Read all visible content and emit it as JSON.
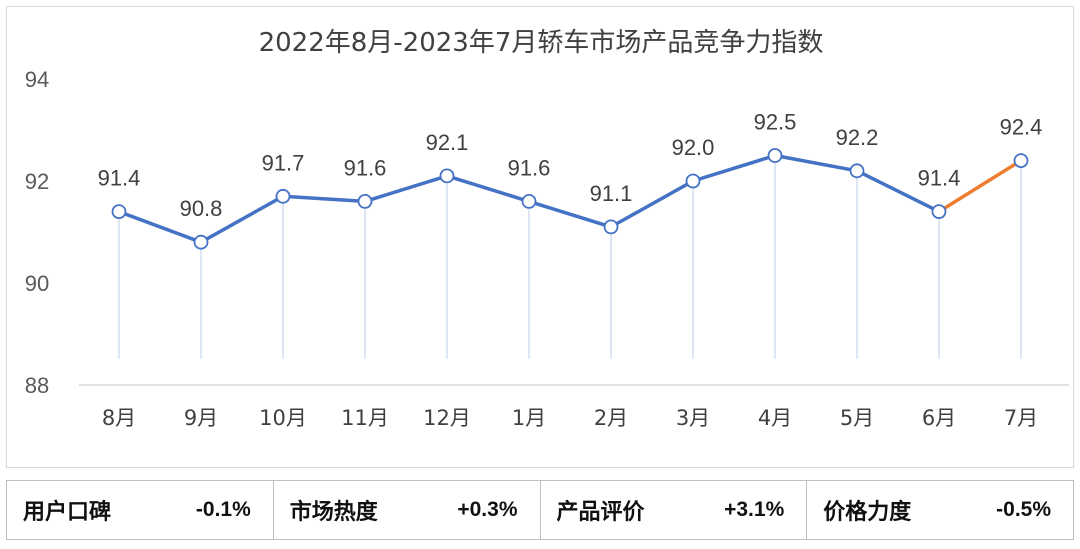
{
  "chart_data": {
    "type": "line",
    "title": "2022年8月-2023年7月轿车市场产品竞争力指数",
    "categories": [
      "8月",
      "9月",
      "10月",
      "11月",
      "12月",
      "1月",
      "2月",
      "3月",
      "4月",
      "5月",
      "6月",
      "7月"
    ],
    "values": [
      91.4,
      90.8,
      91.7,
      91.6,
      92.1,
      91.6,
      91.1,
      92.0,
      92.5,
      92.2,
      91.4,
      92.4
    ],
    "data_labels": [
      "91.4",
      "90.8",
      "91.7",
      "91.6",
      "92.1",
      "91.6",
      "91.1",
      "92.0",
      "92.5",
      "92.2",
      "91.4",
      "92.4"
    ],
    "ylim": [
      88,
      94
    ],
    "yticks": [
      "88",
      "90",
      "92",
      "94"
    ],
    "grid": false,
    "colors": {
      "main": "#4472c4",
      "highlight": "#ed7d31",
      "drop": "#c9d6ee",
      "axis": "#d9d9d9"
    }
  },
  "metrics": [
    {
      "label": "用户口碑",
      "value": "-0.1%"
    },
    {
      "label": "市场热度",
      "value": "+0.3%"
    },
    {
      "label": "产品评价",
      "value": "+3.1%"
    },
    {
      "label": "价格力度",
      "value": "-0.5%"
    }
  ]
}
